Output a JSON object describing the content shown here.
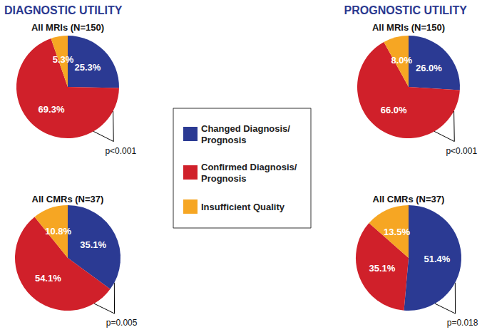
{
  "headers": [
    "DIAGNOSTIC UTILITY",
    "PROGNOSTIC UTILITY"
  ],
  "chart_data": [
    {
      "type": "pie",
      "title": "All MRIs (N=150)",
      "categories": [
        "Changed Diagnosis/Prognosis",
        "Confirmed Diagnosis/Prognosis",
        "Insufficient Quality"
      ],
      "values": [
        25.3,
        69.3,
        5.3
      ],
      "value_labels": [
        "25.3%",
        "69.3%",
        "5.3%"
      ],
      "colors": [
        "#2b3a93",
        "#d0202a",
        "#f6a623"
      ],
      "data_labels": true,
      "legend": "center",
      "annotation": "p<0.001"
    },
    {
      "type": "pie",
      "title": "All CMRs (N=37)",
      "categories": [
        "Changed Diagnosis/Prognosis",
        "Confirmed Diagnosis/Prognosis",
        "Insufficient Quality"
      ],
      "values": [
        35.1,
        54.1,
        10.8
      ],
      "value_labels": [
        "35.1%",
        "54.1%",
        "10.8%"
      ],
      "colors": [
        "#2b3a93",
        "#d0202a",
        "#f6a623"
      ],
      "data_labels": true,
      "legend": "center",
      "annotation": "p=0.005"
    },
    {
      "type": "pie",
      "title": "All MRIs (N=150)",
      "categories": [
        "Changed Diagnosis/Prognosis",
        "Confirmed Diagnosis/Prognosis",
        "Insufficient Quality"
      ],
      "values": [
        26.0,
        66.0,
        8.0
      ],
      "value_labels": [
        "26.0%",
        "66.0%",
        "8.0%"
      ],
      "colors": [
        "#2b3a93",
        "#d0202a",
        "#f6a623"
      ],
      "data_labels": true,
      "legend": "center",
      "annotation": "p<0.001"
    },
    {
      "type": "pie",
      "title": "All CMRs (N=37)",
      "categories": [
        "Changed Diagnosis/Prognosis",
        "Confirmed Diagnosis/Prognosis",
        "Insufficient Quality"
      ],
      "values": [
        51.4,
        35.1,
        13.5
      ],
      "value_labels": [
        "51.4%",
        "35.1%",
        "13.5%"
      ],
      "colors": [
        "#2b3a93",
        "#d0202a",
        "#f6a623"
      ],
      "data_labels": true,
      "legend": "center",
      "annotation": "p=0.018"
    }
  ]
}
